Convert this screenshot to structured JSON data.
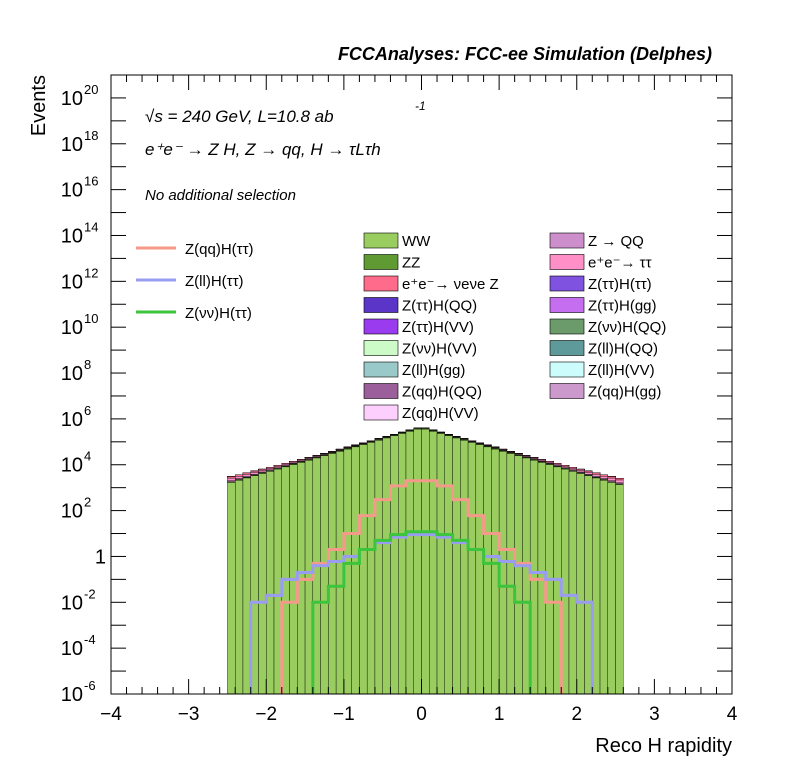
{
  "header": {
    "title": "FCCAnalyses: FCC-ee Simulation (Delphes)"
  },
  "annotations": {
    "line1": "√s = 240 GeV, L=10.8 ab",
    "line1_sup": "-1",
    "line2": "e⁺e⁻ → Z H, Z → qq, H → τLτh",
    "line3": "No additional selection"
  },
  "axes": {
    "xlabel": "Reco H rapidity",
    "ylabel": "Events"
  },
  "chart_data": {
    "type": "histogram",
    "x_binning": {
      "min": -4,
      "max": 4,
      "nbins": 80
    },
    "xlim": [
      -4,
      4
    ],
    "ylim": [
      1e-06,
      1e+21
    ],
    "yscale": "log",
    "xticks": [
      "−4",
      "−3",
      "−2",
      "−1",
      "0",
      "1",
      "2",
      "3",
      "4"
    ],
    "yticks": [
      {
        "mant": "10",
        "exp": "-6"
      },
      {
        "mant": "10",
        "exp": "-4"
      },
      {
        "mant": "10",
        "exp": "-2"
      },
      {
        "mant": "1",
        "exp": ""
      },
      {
        "mant": "10",
        "exp": "2"
      },
      {
        "mant": "10",
        "exp": "4"
      },
      {
        "mant": "10",
        "exp": "6"
      },
      {
        "mant": "10",
        "exp": "8"
      },
      {
        "mant": "10",
        "exp": "10"
      },
      {
        "mant": "10",
        "exp": "12"
      },
      {
        "mant": "10",
        "exp": "14"
      },
      {
        "mant": "10",
        "exp": "16"
      },
      {
        "mant": "10",
        "exp": "18"
      },
      {
        "mant": "10",
        "exp": "20"
      }
    ],
    "stacked_background": [
      {
        "name": "WW",
        "color": "#9acd5f",
        "ranges": [
          [
            -2.5,
            2.6
          ]
        ],
        "core": 400000.0,
        "decay": 0.8,
        "edge": 1
      },
      {
        "name": "ZZ",
        "color": "#5f9b32",
        "ranges": [
          [
            -2.5,
            2.6
          ]
        ],
        "core": 30000.0,
        "decay": 0.8,
        "edge": 0.4
      },
      {
        "name": "Z → QQ",
        "color": "#cc8fcc",
        "ranges": [
          [
            -2.5,
            2.6
          ]
        ],
        "core": 10000.0,
        "decay": 0.85,
        "edge": 0.5
      },
      {
        "name": "e⁺e⁻→ ττ",
        "color": "#ff8fc7",
        "ranges": [
          [
            -2.5,
            2.6
          ]
        ],
        "core": 8000.0,
        "decay": 0.9,
        "edge": 3
      },
      {
        "name": "e⁺e⁻→ νeνe Z",
        "color": "#ff6b8a",
        "ranges": [
          [
            -2.5,
            2.6
          ]
        ],
        "core": 6000.0,
        "decay": 0.9,
        "edge": 1
      },
      {
        "name": "Z(ττ)H(ττ)",
        "color": "#7f52e0",
        "ranges": [
          [
            -1.0,
            1.1
          ]
        ],
        "core": 200,
        "decay": 0.5,
        "edge": 10
      },
      {
        "name": "Z(ττ)H(QQ)",
        "color": "#5a35c8",
        "ranges": [
          [
            -1.0,
            1.1
          ]
        ],
        "core": 150,
        "decay": 0.5,
        "edge": 5
      },
      {
        "name": "Z(ττ)H(gg)",
        "color": "#c66ef0",
        "ranges": [
          [
            -1.1,
            1.1
          ]
        ],
        "core": 100,
        "decay": 0.5,
        "edge": 4
      },
      {
        "name": "Z(ττ)H(VV)",
        "color": "#9b3bf0",
        "ranges": [
          [
            -1.1,
            1.1
          ]
        ],
        "core": 80,
        "decay": 0.5,
        "edge": 2
      },
      {
        "name": "Z(νν)H(QQ)",
        "color": "#6b9a6b",
        "ranges": [
          [
            -2.5,
            2.6
          ]
        ],
        "core": 50,
        "decay": 0.5,
        "edge": 0.5
      },
      {
        "name": "Z(νν)H(VV)",
        "color": "#cdfbc8",
        "ranges": [
          [
            -2.5,
            2.6
          ]
        ],
        "core": 20,
        "decay": 0.4,
        "edge": 0.05
      },
      {
        "name": "Z(ll)H(QQ)",
        "color": "#5f9a9a",
        "ranges": [
          [
            -1.5,
            1.6
          ]
        ],
        "core": 10,
        "decay": 0.5,
        "edge": 0.05
      },
      {
        "name": "Z(ll)H(gg)",
        "color": "#9ac9c9",
        "ranges": [
          [
            -1.5,
            1.6
          ]
        ],
        "core": 8,
        "decay": 0.5,
        "edge": 0.01
      },
      {
        "name": "Z(ll)H(VV)",
        "color": "#cdfcfc",
        "ranges": [
          [
            -1.5,
            1.6
          ]
        ],
        "core": 5,
        "decay": 0.5,
        "edge": 0.01
      },
      {
        "name": "Z(qq)H(QQ)",
        "color": "#9b5f9b",
        "ranges": [
          [
            -1.0,
            1.1
          ]
        ],
        "core": 3,
        "decay": 0.5,
        "edge": 0.3
      },
      {
        "name": "Z(qq)H(gg)",
        "color": "#cc99cc",
        "ranges": [
          [
            -1.0,
            1.1
          ]
        ],
        "core": 2,
        "decay": 0.5,
        "edge": 0.1
      },
      {
        "name": "Z(qq)H(VV)",
        "color": "#fccffc",
        "ranges": [
          [
            -1.0,
            1.1
          ]
        ],
        "core": 1,
        "decay": 0.5,
        "edge": 0.05
      }
    ],
    "signal_lines": [
      {
        "name": "Z(qq)H(ττ)",
        "color": "#f59a8a",
        "points": [
          [
            -1.7,
            0.01
          ],
          [
            -1.5,
            0.1
          ],
          [
            -1.3,
            0.5
          ],
          [
            -1.1,
            2
          ],
          [
            -0.9,
            10
          ],
          [
            -0.7,
            60
          ],
          [
            -0.5,
            300
          ],
          [
            -0.3,
            1200
          ],
          [
            -0.1,
            2000
          ],
          [
            0.1,
            2000
          ],
          [
            0.3,
            1200
          ],
          [
            0.5,
            300
          ],
          [
            0.7,
            60
          ],
          [
            0.9,
            10
          ],
          [
            1.1,
            2
          ],
          [
            1.3,
            0.5
          ],
          [
            1.5,
            0.1
          ],
          [
            1.7,
            0.01
          ]
        ],
        "range": [
          -1.8,
          1.9
        ]
      },
      {
        "name": "Z(ll)H(ττ)",
        "color": "#9a9cf2",
        "points": [
          [
            -2.1,
            0.01
          ],
          [
            -1.9,
            0.02
          ],
          [
            -1.7,
            0.1
          ],
          [
            -1.5,
            0.2
          ],
          [
            -1.3,
            0.4
          ],
          [
            -1.1,
            0.6
          ],
          [
            -0.9,
            1
          ],
          [
            -0.7,
            2
          ],
          [
            -0.5,
            4
          ],
          [
            -0.3,
            7
          ],
          [
            -0.1,
            9
          ],
          [
            0.1,
            9
          ],
          [
            0.3,
            7
          ],
          [
            0.5,
            4
          ],
          [
            0.7,
            2
          ],
          [
            0.9,
            1
          ],
          [
            1.1,
            0.6
          ],
          [
            1.3,
            0.4
          ],
          [
            1.5,
            0.2
          ],
          [
            1.7,
            0.1
          ],
          [
            1.9,
            0.02
          ],
          [
            2.1,
            0.01
          ]
        ],
        "range": [
          -2.2,
          2.3
        ]
      },
      {
        "name": "Z(νν)H(ττ)",
        "color": "#3cc43c",
        "points": [
          [
            -1.3,
            0.01
          ],
          [
            -1.1,
            0.05
          ],
          [
            -0.9,
            0.5
          ],
          [
            -0.7,
            2
          ],
          [
            -0.5,
            5
          ],
          [
            -0.3,
            9
          ],
          [
            -0.1,
            12
          ],
          [
            0.1,
            12
          ],
          [
            0.3,
            9
          ],
          [
            0.5,
            5
          ],
          [
            0.7,
            2
          ],
          [
            0.9,
            0.5
          ],
          [
            1.1,
            0.05
          ],
          [
            1.3,
            0.01
          ]
        ],
        "range": [
          -1.4,
          1.5
        ]
      }
    ],
    "legend_left": [
      "Z(qq)H(ττ)",
      "Z(ll)H(ττ)",
      "Z(νν)H(ττ)"
    ],
    "legend_col1": [
      "WW",
      "ZZ",
      "e⁺e⁻→ νeνe Z",
      "Z(ττ)H(QQ)",
      "Z(ττ)H(VV)",
      "Z(νν)H(VV)",
      "Z(ll)H(gg)",
      "Z(qq)H(QQ)",
      "Z(qq)H(VV)"
    ],
    "legend_col2": [
      "Z → QQ",
      "e⁺e⁻→ ττ",
      "Z(ττ)H(ττ)",
      "Z(ττ)H(gg)",
      "Z(νν)H(QQ)",
      "Z(ll)H(QQ)",
      "Z(ll)H(VV)",
      "Z(qq)H(gg)"
    ]
  }
}
